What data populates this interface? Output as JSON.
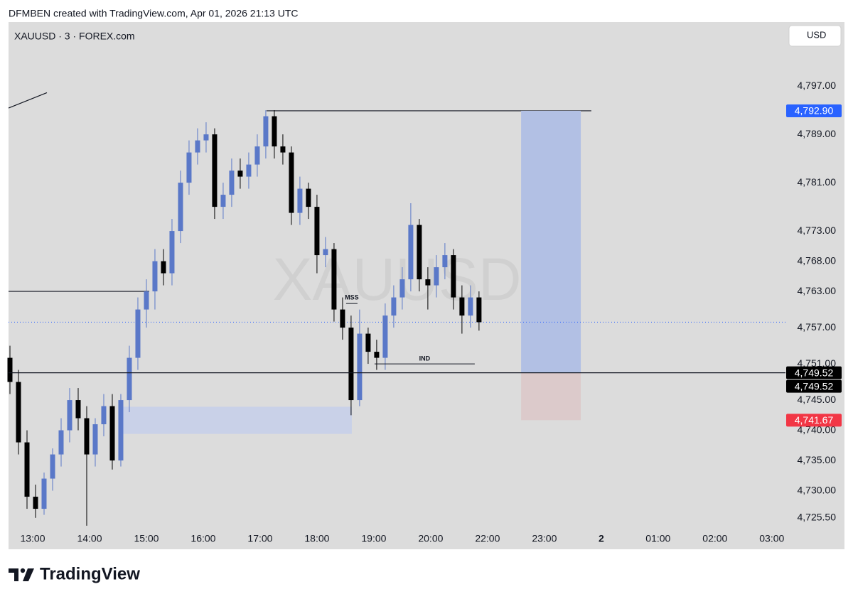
{
  "header": "DFMBEN created with TradingView.com, Apr 01, 2026 21:13 UTC",
  "symbol": "XAUUSD · 3 · FOREX.com",
  "currency_button": "USD",
  "footer_brand": "TradingView",
  "chart_data": {
    "type": "candlestick",
    "watermark": "XAUUSD",
    "up_color": "#5a78c8",
    "down_color": "#000000",
    "session_gap": [
      21,
      22
    ],
    "xlim": [
      12.575,
      27.24
    ],
    "xticks": [
      {
        "value": 13,
        "label": "13:00"
      },
      {
        "value": 14,
        "label": "14:00"
      },
      {
        "value": 15,
        "label": "15:00"
      },
      {
        "value": 16,
        "label": "16:00"
      },
      {
        "value": 17,
        "label": "17:00"
      },
      {
        "value": 18,
        "label": "18:00"
      },
      {
        "value": 19,
        "label": "19:00"
      },
      {
        "value": 20,
        "label": "20:00"
      },
      {
        "value": 22,
        "label": "22:00"
      },
      {
        "value": 23,
        "label": "23:00"
      },
      {
        "value": 24,
        "label": "2"
      },
      {
        "value": 25,
        "label": "01:00"
      },
      {
        "value": 26,
        "label": "02:00"
      },
      {
        "value": 27,
        "label": "03:00"
      }
    ],
    "ylim": [
      4720.3,
      4807.6
    ],
    "yticks": [
      {
        "value": 4797,
        "label": "4,797.00"
      },
      {
        "value": 4789,
        "label": "4,789.00"
      },
      {
        "value": 4781,
        "label": "4,781.00"
      },
      {
        "value": 4773,
        "label": "4,773.00"
      },
      {
        "value": 4768,
        "label": "4,768.00"
      },
      {
        "value": 4763,
        "label": "4,763.00"
      },
      {
        "value": 4757,
        "label": "4,757.00"
      },
      {
        "value": 4751,
        "label": "4,751.00"
      },
      {
        "value": 4745,
        "label": "4,745.00"
      },
      {
        "value": 4740,
        "label": "4,740.00"
      },
      {
        "value": 4735,
        "label": "4,735.00"
      },
      {
        "value": 4730,
        "label": "4,730.00"
      },
      {
        "value": 4725.5,
        "label": "4,725.50"
      }
    ],
    "x": [
      12.6,
      12.75,
      12.9,
      13.05,
      13.2,
      13.35,
      13.5,
      13.65,
      13.8,
      13.95,
      14.1,
      14.25,
      14.4,
      14.55,
      14.7,
      14.85,
      15,
      15.15,
      15.3,
      15.45,
      15.6,
      15.75,
      15.9,
      16.05,
      16.2,
      16.35,
      16.5,
      16.65,
      16.8,
      16.95,
      17.1,
      17.25,
      17.4,
      17.55,
      17.7,
      17.85,
      18,
      18.15,
      18.3,
      18.45,
      18.6,
      18.75,
      18.9,
      19.05,
      19.2,
      19.35,
      19.5,
      19.65,
      19.8,
      19.95,
      20.1,
      20.25,
      20.4,
      20.55,
      20.7,
      20.85
    ],
    "open": [
      4752,
      4748,
      4738,
      4729,
      4727,
      4732,
      4736,
      4740,
      4745,
      4742,
      4736,
      4741,
      4744,
      4735,
      4745,
      4752,
      4760,
      4763,
      4768,
      4766,
      4773,
      4781,
      4786,
      4788,
      4789,
      4777,
      4779,
      4783,
      4782,
      4784,
      4787,
      4792,
      4787,
      4786,
      4776,
      4780,
      4777,
      4769,
      4770,
      4760,
      4757,
      4745,
      4756,
      4753,
      4752,
      4759,
      4762,
      4765,
      4774,
      4765,
      4764,
      4767,
      4769,
      4762,
      4759,
      4762
    ],
    "high": [
      4754,
      4750,
      4740,
      4731,
      4733,
      4737,
      4742,
      4747,
      4747,
      4744,
      4742,
      4746,
      4746,
      4746,
      4754,
      4762,
      4765,
      4770,
      4770,
      4775,
      4783,
      4788,
      4790,
      4791,
      4790,
      4781,
      4785,
      4785,
      4786,
      4789,
      4793,
      4793,
      4789,
      4787,
      4782,
      4781,
      4779,
      4772,
      4771,
      4762,
      4759,
      4760,
      4757,
      4755,
      4761,
      4764,
      4767,
      4777.6,
      4775,
      4767,
      4769,
      4771,
      4770,
      4764,
      4764,
      4763
    ],
    "low": [
      4746,
      4736,
      4727,
      4725.5,
      4726,
      4730,
      4734,
      4738,
      4740,
      4724.2,
      4734,
      4739,
      4733.5,
      4734,
      4743,
      4750,
      4757,
      4760,
      4764,
      4764,
      4771,
      4779,
      4784,
      4786,
      4775,
      4775,
      4777,
      4780,
      4780,
      4782,
      4785,
      4785,
      4784,
      4774,
      4774,
      4775,
      4766,
      4767,
      4758,
      4755,
      4742.5,
      4744,
      4751,
      4750,
      4750,
      4757,
      4760,
      4763,
      4763,
      4760,
      4762,
      4765,
      4760,
      4756,
      4757,
      4756.5
    ],
    "close": [
      4748,
      4738,
      4729,
      4727,
      4732,
      4736,
      4740,
      4745,
      4742,
      4736,
      4741,
      4744,
      4735,
      4745,
      4752,
      4760,
      4763,
      4768,
      4766,
      4773,
      4781,
      4786,
      4788,
      4789,
      4777,
      4779,
      4783,
      4782,
      4784,
      4787,
      4792,
      4787,
      4786,
      4776,
      4780,
      4777,
      4769,
      4770,
      4760,
      4757,
      4745,
      4756,
      4753,
      4752,
      4759,
      4762,
      4765,
      4774,
      4765,
      4764,
      4767,
      4769,
      4762,
      4759,
      4762,
      4757.9
    ],
    "last_price": 4757.9,
    "drawings": {
      "trend_line": {
        "x": [
          12.575,
          13.25
        ],
        "y": [
          4793.35,
          4795.9
        ]
      },
      "level_line": {
        "x": [
          12.575,
          15.05
        ],
        "y": 4763
      },
      "high_line": {
        "x": [
          17.1125,
          23.825
        ],
        "y": 4792.9
      },
      "fvg": {
        "x": [
          14.575,
          18.6125
        ],
        "y": [
          4739.4,
          4743.9
        ],
        "color": "#c9d1e8"
      },
      "mss": {
        "label": "MSS",
        "x": [
          18.5125,
          18.7125
        ],
        "y": 4761
      },
      "ind": {
        "label": "IND",
        "x": [
          19.0125,
          20.775
        ],
        "y": 4751
      },
      "entry_line": {
        "y": 4749.52,
        "label": "4,749.52"
      }
    },
    "position": {
      "x": [
        22.59,
        23.64
      ],
      "entry": 4749.52,
      "target": 4792.9,
      "stop": 4741.67,
      "entry_label": "4,749.52",
      "target_label": "4,792.90",
      "stop_label": "4,741.67",
      "target_color": "#b2c0e4",
      "stop_color": "#dccacb"
    }
  }
}
